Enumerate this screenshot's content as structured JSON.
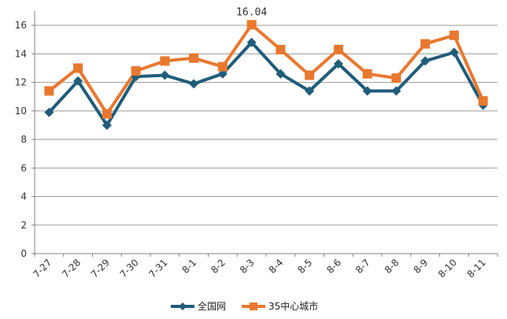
{
  "chart_data": {
    "type": "line",
    "categories": [
      "7-27",
      "7-28",
      "7-29",
      "7-30",
      "7-31",
      "8-1",
      "8-2",
      "8-3",
      "8-4",
      "8-5",
      "8-6",
      "8-7",
      "8-8",
      "8-9",
      "8-10",
      "8-11"
    ],
    "series": [
      {
        "name": "全国网",
        "color": "#1f5c7a",
        "marker": "diamond",
        "values": [
          9.9,
          12.1,
          9.0,
          12.4,
          12.5,
          11.9,
          12.6,
          14.8,
          12.6,
          11.4,
          13.3,
          11.4,
          11.4,
          13.5,
          14.1,
          10.4
        ]
      },
      {
        "name": "35中心城市",
        "color": "#e8782f",
        "marker": "square",
        "values": [
          11.4,
          13.0,
          9.8,
          12.8,
          13.5,
          13.7,
          13.1,
          16.04,
          14.3,
          12.5,
          14.3,
          12.6,
          12.3,
          14.7,
          15.3,
          10.7
        ]
      }
    ],
    "yticks": [
      0,
      2,
      4,
      6,
      8,
      10,
      12,
      14,
      16
    ],
    "ylim": [
      0,
      17
    ],
    "grid": true,
    "legend": "bottom",
    "annotations": [
      {
        "series": 1,
        "index": 7,
        "text": "16.04"
      }
    ]
  }
}
